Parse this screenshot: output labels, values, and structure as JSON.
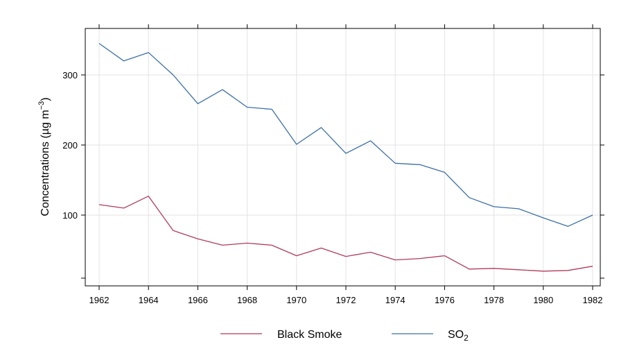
{
  "chart_data": {
    "type": "line",
    "title": "",
    "xlabel": "",
    "ylabel": {
      "text": "Concentrations (µg m",
      "superscript": "−3",
      "close": ")"
    },
    "x": [
      1962,
      1963,
      1964,
      1965,
      1966,
      1967,
      1968,
      1969,
      1970,
      1971,
      1972,
      1973,
      1974,
      1975,
      1976,
      1977,
      1978,
      1979,
      1980,
      1981,
      1982
    ],
    "xlim": [
      1962,
      1982
    ],
    "ylim": [
      10,
      350
    ],
    "x_ticks": [
      "1962",
      "1964",
      "1966",
      "1968",
      "1970",
      "1972",
      "1974",
      "1976",
      "1978",
      "1980",
      "1982"
    ],
    "y_ticks": [
      "100",
      "200",
      "300"
    ],
    "grid": true,
    "legend_position": "bottom",
    "series": [
      {
        "name": "Black Smoke",
        "label_main": "Black Smoke",
        "label_sub": "",
        "color": "#b03a5b",
        "values": [
          115,
          110,
          127,
          78,
          66,
          57,
          60,
          57,
          42,
          53,
          41,
          47,
          36,
          38,
          42,
          23,
          24,
          22,
          20,
          21,
          27
        ]
      },
      {
        "name": "SO2",
        "label_main": "SO",
        "label_sub": "2",
        "color": "#3b6fa8",
        "values": [
          345,
          320,
          332,
          300,
          259,
          279,
          254,
          251,
          201,
          225,
          188,
          206,
          174,
          172,
          161,
          125,
          112,
          109,
          96,
          84,
          100
        ]
      }
    ]
  }
}
